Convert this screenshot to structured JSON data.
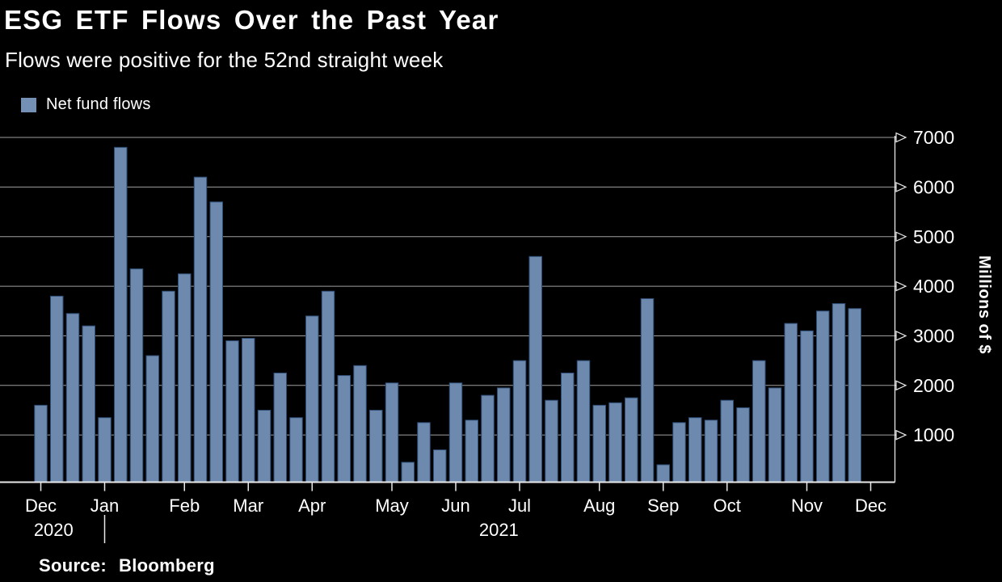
{
  "header": {
    "title": "ESG ETF Flows Over the Past Year",
    "subtitle": "Flows were positive for the 52nd straight week"
  },
  "legend": {
    "label": "Net fund flows"
  },
  "footer": {
    "source_label": "Source:",
    "source_value": "Bloomberg"
  },
  "colors": {
    "background": "#000000",
    "bar_fill": "#6d89ae",
    "bar_border": "#2e4d75",
    "legend_swatch": "#7590b5",
    "gridline": "#9f9f9f",
    "axis": "#e8e8e8",
    "text": "#ffffff"
  },
  "chart_data": {
    "type": "bar",
    "title": "ESG ETF Flows Over the Past Year",
    "subtitle": "Flows were positive for the 52nd straight week",
    "series_name": "Net fund flows",
    "ylabel": "Millions of $",
    "ylim": [
      0,
      7300
    ],
    "yticks": [
      1000,
      2000,
      3000,
      4000,
      5000,
      6000,
      7000
    ],
    "x_desc": "52 weekly net fund flow observations, Dec 2020 through Dec 2021",
    "values": [
      1600,
      3800,
      3450,
      3200,
      1350,
      6800,
      4350,
      2600,
      3900,
      4250,
      6200,
      5700,
      2900,
      2950,
      1500,
      2250,
      1350,
      3400,
      3900,
      2200,
      2400,
      1500,
      2050,
      450,
      1250,
      700,
      2050,
      1300,
      1800,
      1950,
      2500,
      4600,
      1700,
      2250,
      2500,
      1600,
      1650,
      1750,
      3750,
      400,
      1250,
      1350,
      1300,
      1700,
      1550,
      2500,
      1950,
      3250,
      3100,
      3500,
      3650,
      3550
    ],
    "month_ticks": [
      {
        "label": "Dec",
        "week": 1
      },
      {
        "label": "Jan",
        "week": 5
      },
      {
        "label": "Feb",
        "week": 10
      },
      {
        "label": "Mar",
        "week": 14
      },
      {
        "label": "Apr",
        "week": 18
      },
      {
        "label": "May",
        "week": 23
      },
      {
        "label": "Jun",
        "week": 27
      },
      {
        "label": "Jul",
        "week": 31
      },
      {
        "label": "Aug",
        "week": 36
      },
      {
        "label": "Sep",
        "week": 40
      },
      {
        "label": "Oct",
        "week": 44
      },
      {
        "label": "Nov",
        "week": 49
      },
      {
        "label": "Dec",
        "week": 53
      }
    ],
    "year_labels": [
      {
        "text": "2020",
        "week": 1.8
      },
      {
        "text": "2021",
        "week": 29.7
      }
    ],
    "year_divider_week": 5,
    "legend_position": "top-left",
    "grid": "horizontal"
  }
}
